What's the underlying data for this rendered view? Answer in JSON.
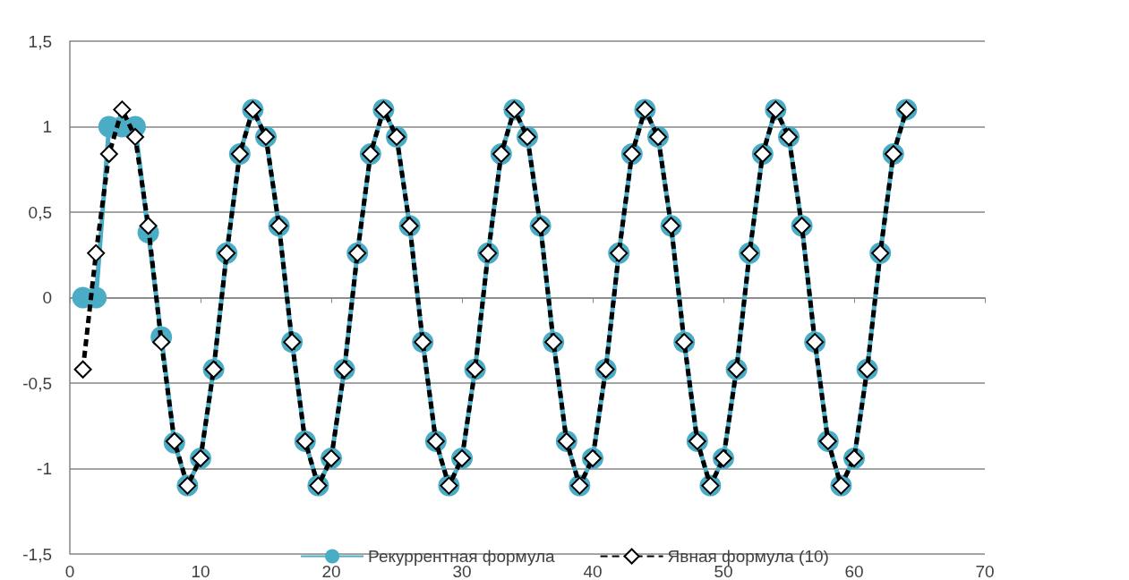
{
  "chart_data": {
    "type": "line",
    "x": [
      1,
      2,
      3,
      4,
      5,
      6,
      7,
      8,
      9,
      10,
      11,
      12,
      13,
      14,
      15,
      16,
      17,
      18,
      19,
      20,
      21,
      22,
      23,
      24,
      25,
      26,
      27,
      28,
      29,
      30,
      31,
      32,
      33,
      34,
      35,
      36,
      37,
      38,
      39,
      40,
      41,
      42,
      43,
      44,
      45,
      46,
      47,
      48,
      49,
      50,
      51,
      52,
      53,
      54,
      55,
      56,
      57,
      58,
      59,
      60,
      61,
      62,
      63,
      64
    ],
    "series": [
      {
        "name": "Рекуррентная формула",
        "color": "#4bacc6",
        "marker": "circle",
        "line_style": "solid",
        "values": [
          0,
          0,
          1,
          1,
          1,
          0.38,
          -0.23,
          -0.85,
          -1.1,
          -0.94,
          -0.42,
          0.26,
          0.84,
          1.1,
          0.94,
          0.42,
          -0.26,
          -0.84,
          -1.1,
          -0.94,
          -0.42,
          0.26,
          0.84,
          1.1,
          0.94,
          0.42,
          -0.26,
          -0.84,
          -1.1,
          -0.94,
          -0.42,
          0.26,
          0.84,
          1.1,
          0.94,
          0.42,
          -0.26,
          -0.84,
          -1.1,
          -0.94,
          -0.42,
          0.26,
          0.84,
          1.1,
          0.94,
          0.42,
          -0.26,
          -0.84,
          -1.1,
          -0.94,
          -0.42,
          0.26,
          0.84,
          1.1,
          0.94,
          0.42,
          -0.26,
          -0.84,
          -1.1,
          -0.94,
          -0.42,
          0.26,
          0.84,
          1.1
        ]
      },
      {
        "name": "Явная формула (10)",
        "color": "#000000",
        "marker": "diamond",
        "line_style": "dashed",
        "values": [
          -0.42,
          0.26,
          0.84,
          1.1,
          0.94,
          0.42,
          -0.26,
          -0.84,
          -1.1,
          -0.94,
          -0.42,
          0.26,
          0.84,
          1.1,
          0.94,
          0.42,
          -0.26,
          -0.84,
          -1.1,
          -0.94,
          -0.42,
          0.26,
          0.84,
          1.1,
          0.94,
          0.42,
          -0.26,
          -0.84,
          -1.1,
          -0.94,
          -0.42,
          0.26,
          0.84,
          1.1,
          0.94,
          0.42,
          -0.26,
          -0.84,
          -1.1,
          -0.94,
          -0.42,
          0.26,
          0.84,
          1.1,
          0.94,
          0.42,
          -0.26,
          -0.84,
          -1.1,
          -0.94,
          -0.42,
          0.26,
          0.84,
          1.1,
          0.94,
          0.42,
          -0.26,
          -0.84,
          -1.1,
          -0.94,
          -0.42,
          0.26,
          0.84,
          1.1
        ]
      }
    ],
    "xlim": [
      0,
      70
    ],
    "xticks": [
      0,
      10,
      20,
      30,
      40,
      50,
      60,
      70
    ],
    "ylim": [
      -1.5,
      1.5
    ],
    "yticks": [
      {
        "value": -1.5,
        "label": "-1,5"
      },
      -1,
      {
        "value": -0.5,
        "label": "-0,5"
      },
      0,
      {
        "value": 0.5,
        "label": "0,5"
      },
      1,
      {
        "value": 1.5,
        "label": "1,5"
      }
    ],
    "grid": "y",
    "legend": "bottom"
  }
}
